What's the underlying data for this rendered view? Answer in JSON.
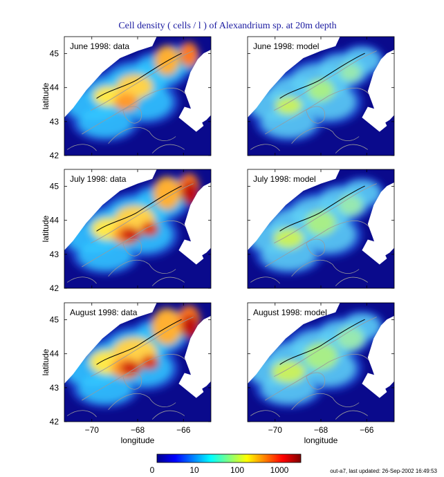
{
  "chart_data": {
    "type": "heatmap",
    "title": "Cell density ( cells / l ) of Alexandrium sp. at 20m depth",
    "xlabel": "longitude",
    "ylabel": "latitude",
    "xlim": [
      -71.2,
      -64.8
    ],
    "ylim": [
      42,
      45.5
    ],
    "x_ticks": [
      "−70",
      "−68",
      "−66"
    ],
    "x_tick_values": [
      -70,
      -68,
      -66
    ],
    "y_ticks": [
      "42",
      "43",
      "44",
      "45"
    ],
    "y_tick_values": [
      42,
      43,
      44,
      45
    ],
    "panels": [
      {
        "label": "June 1998: data",
        "kind": "data",
        "intensity": 2
      },
      {
        "label": "June 1998: model",
        "kind": "model",
        "intensity": 1
      },
      {
        "label": "July 1998: data",
        "kind": "data",
        "intensity": 3
      },
      {
        "label": "July 1998: model",
        "kind": "model",
        "intensity": 2
      },
      {
        "label": "August 1998: data",
        "kind": "data",
        "intensity": 4
      },
      {
        "label": "August 1998: model",
        "kind": "model",
        "intensity": 3
      }
    ],
    "colorbar": {
      "ticks": [
        "0",
        "10",
        "100",
        "1000"
      ],
      "colors": [
        "#00008f",
        "#0000ff",
        "#0080ff",
        "#00ffff",
        "#80ff80",
        "#ffff00",
        "#ff8000",
        "#ff0000",
        "#800000"
      ]
    },
    "grid": false
  },
  "footer": "out-a7, last updated: 26-Sep-2002 16:49:53",
  "colors": {
    "land": "#ffffff",
    "ocean_deep": "#0a0a8c",
    "title": "#1a1aa0"
  }
}
